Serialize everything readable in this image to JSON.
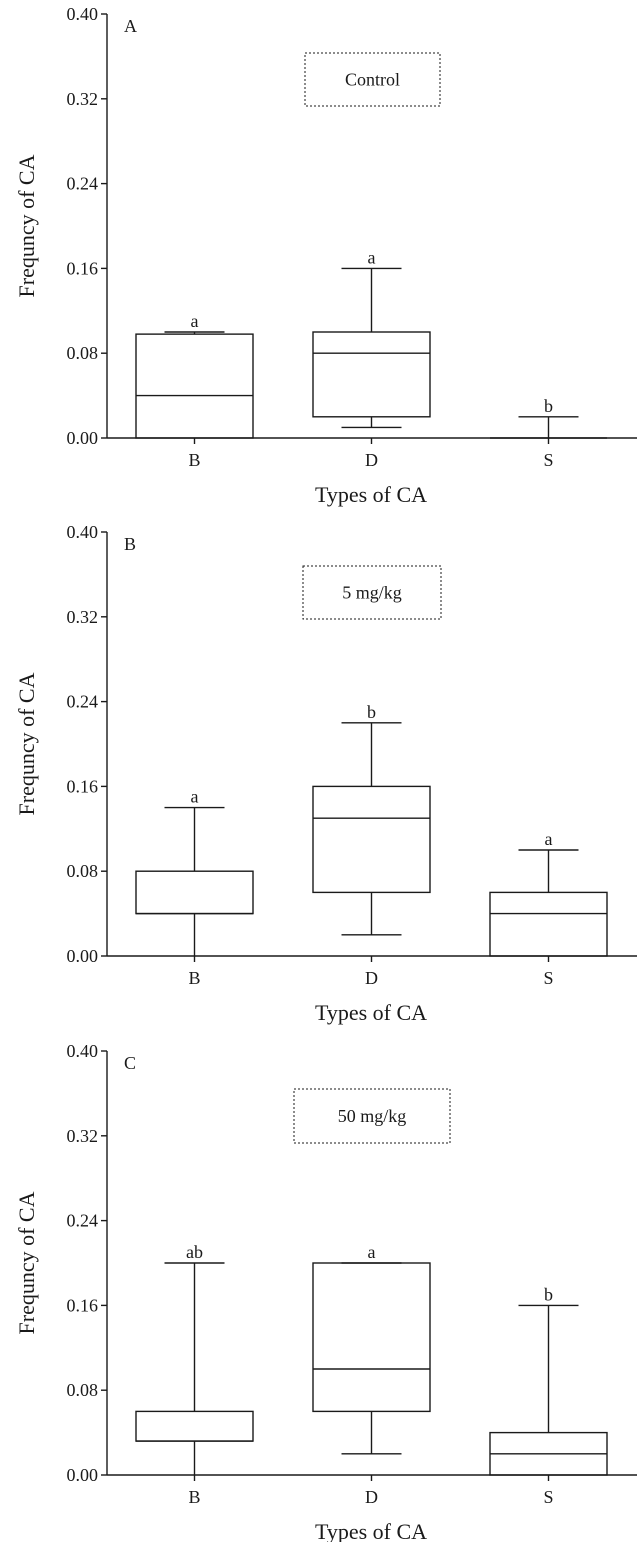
{
  "chart_data": [
    {
      "type": "box",
      "panel_label": "A",
      "treatment_label": "Control",
      "xlabel": "Types of CA",
      "ylabel": "Frequncy of CA",
      "ylim": [
        0,
        0.4
      ],
      "yticks": [
        "0.00",
        "0.08",
        "0.16",
        "0.24",
        "0.32",
        "0.40"
      ],
      "categories": [
        "B",
        "D",
        "S"
      ],
      "boxes": [
        {
          "category": "B",
          "min": 0.0,
          "q1": 0.0,
          "median": 0.04,
          "q3": 0.098,
          "max": 0.1,
          "letter": "a"
        },
        {
          "category": "D",
          "min": 0.01,
          "q1": 0.02,
          "median": 0.08,
          "q3": 0.1,
          "max": 0.16,
          "letter": "a"
        },
        {
          "category": "S",
          "min": 0.0,
          "q1": 0.0,
          "median": 0.0,
          "q3": 0.0,
          "max": 0.02,
          "letter": "b"
        }
      ]
    },
    {
      "type": "box",
      "panel_label": "B",
      "treatment_label": "5 mg/kg",
      "xlabel": "Types of CA",
      "ylabel": "Frequncy of CA",
      "ylim": [
        0,
        0.4
      ],
      "yticks": [
        "0.00",
        "0.08",
        "0.16",
        "0.24",
        "0.32",
        "0.40"
      ],
      "categories": [
        "B",
        "D",
        "S"
      ],
      "boxes": [
        {
          "category": "B",
          "min": 0.0,
          "q1": 0.04,
          "median": 0.04,
          "q3": 0.08,
          "max": 0.14,
          "letter": "a"
        },
        {
          "category": "D",
          "min": 0.02,
          "q1": 0.06,
          "median": 0.13,
          "q3": 0.16,
          "max": 0.22,
          "letter": "b"
        },
        {
          "category": "S",
          "min": 0.0,
          "q1": 0.0,
          "median": 0.04,
          "q3": 0.06,
          "max": 0.1,
          "letter": "a"
        }
      ]
    },
    {
      "type": "box",
      "panel_label": "C",
      "treatment_label": "50 mg/kg",
      "xlabel": "Types of CA",
      "ylabel": "Frequncy of CA",
      "ylim": [
        0,
        0.4
      ],
      "yticks": [
        "0.00",
        "0.08",
        "0.16",
        "0.24",
        "0.32",
        "0.40"
      ],
      "categories": [
        "B",
        "D",
        "S"
      ],
      "boxes": [
        {
          "category": "B",
          "min": 0.0,
          "q1": 0.032,
          "median": 0.032,
          "q3": 0.06,
          "max": 0.2,
          "letter": "ab"
        },
        {
          "category": "D",
          "min": 0.02,
          "q1": 0.06,
          "median": 0.1,
          "q3": 0.2,
          "max": 0.2,
          "letter": "a"
        },
        {
          "category": "S",
          "min": 0.0,
          "q1": 0.0,
          "median": 0.02,
          "q3": 0.04,
          "max": 0.16,
          "letter": "b"
        }
      ]
    }
  ]
}
